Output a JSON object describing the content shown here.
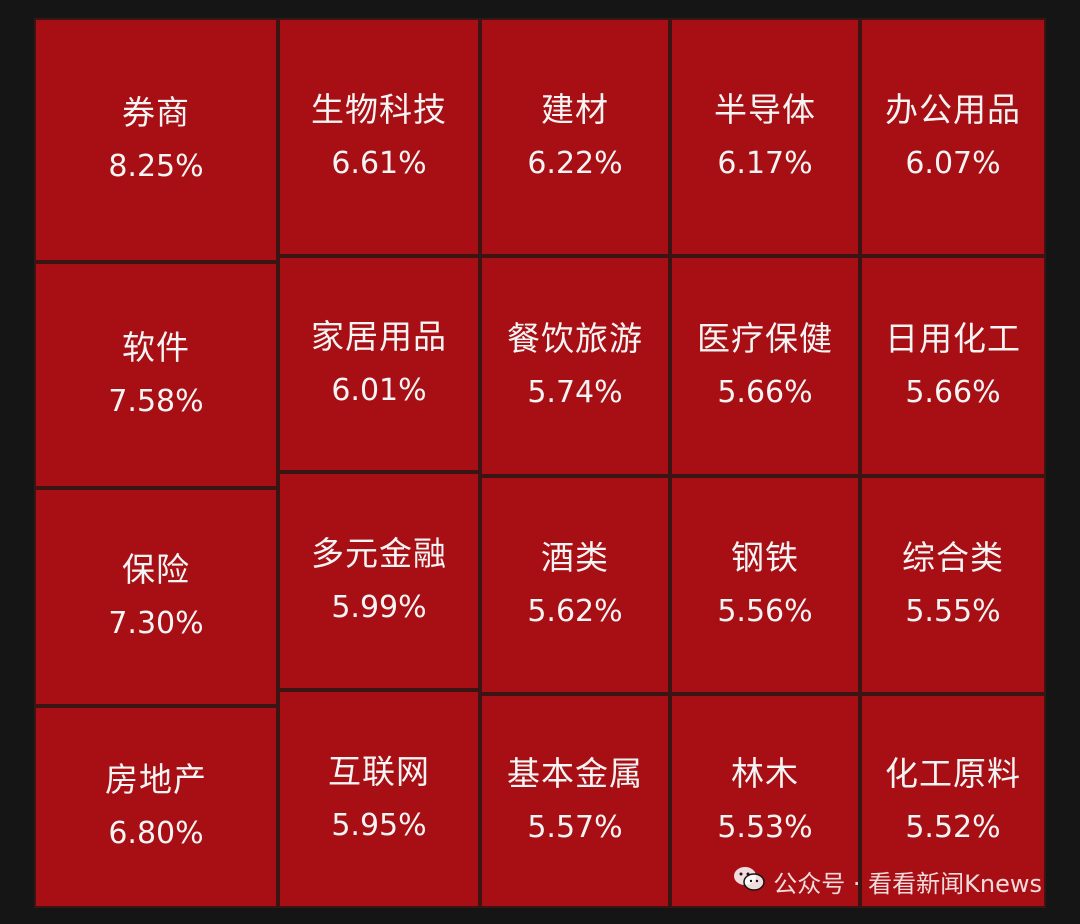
{
  "chart_data": {
    "type": "treemap",
    "tile_color": "#a80f14",
    "items": [
      {
        "name": "券商",
        "value": "8.25%"
      },
      {
        "name": "软件",
        "value": "7.58%"
      },
      {
        "name": "保险",
        "value": "7.30%"
      },
      {
        "name": "房地产",
        "value": "6.80%"
      },
      {
        "name": "生物科技",
        "value": "6.61%"
      },
      {
        "name": "建材",
        "value": "6.22%"
      },
      {
        "name": "半导体",
        "value": "6.17%"
      },
      {
        "name": "办公用品",
        "value": "6.07%"
      },
      {
        "name": "家居用品",
        "value": "6.01%"
      },
      {
        "name": "餐饮旅游",
        "value": "5.74%"
      },
      {
        "name": "医疗保健",
        "value": "5.66%"
      },
      {
        "name": "日用化工",
        "value": "5.66%"
      },
      {
        "name": "多元金融",
        "value": "5.99%"
      },
      {
        "name": "酒类",
        "value": "5.62%"
      },
      {
        "name": "钢铁",
        "value": "5.56%"
      },
      {
        "name": "综合类",
        "value": "5.55%"
      },
      {
        "name": "互联网",
        "value": "5.95%"
      },
      {
        "name": "基本金属",
        "value": "5.57%"
      },
      {
        "name": "林木",
        "value": "5.53%"
      },
      {
        "name": "化工原料",
        "value": "5.52%"
      }
    ]
  },
  "watermark": {
    "icon": "wechat-icon",
    "text": "公众号 · 看看新闻Knews"
  }
}
